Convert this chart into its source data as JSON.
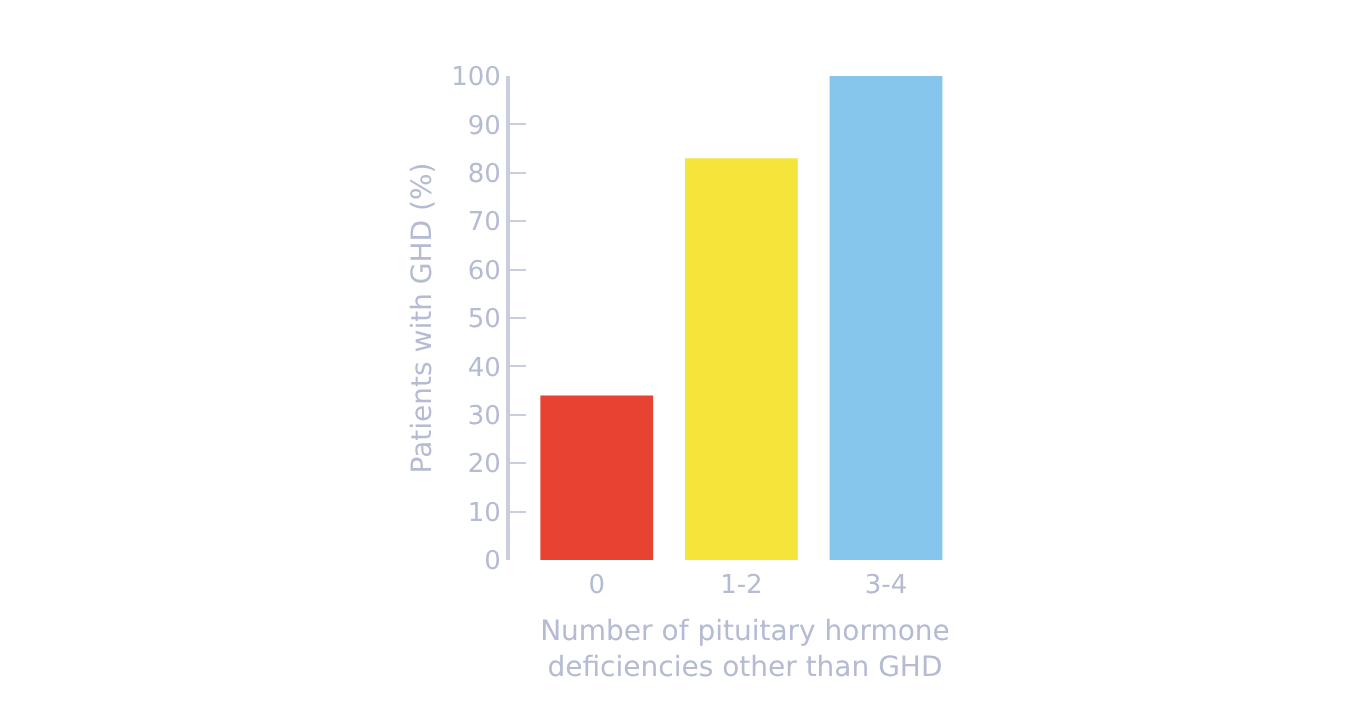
{
  "chart_data": {
    "type": "bar",
    "xlabel": "Number of pituitary hormone\ndeficiencies other than GHD",
    "ylabel": "Patients with GHD (%)",
    "categories": [
      "0",
      "1-2",
      "3-4"
    ],
    "series": [
      {
        "values": [
          34,
          83,
          100
        ],
        "colors": [
          "#e84232",
          "#f5e43a",
          "#86c5ec"
        ]
      }
    ],
    "ylim": [
      0,
      100
    ],
    "yticks": [
      0,
      10,
      20,
      30,
      40,
      50,
      60,
      70,
      80,
      90,
      100
    ],
    "legend": false
  }
}
